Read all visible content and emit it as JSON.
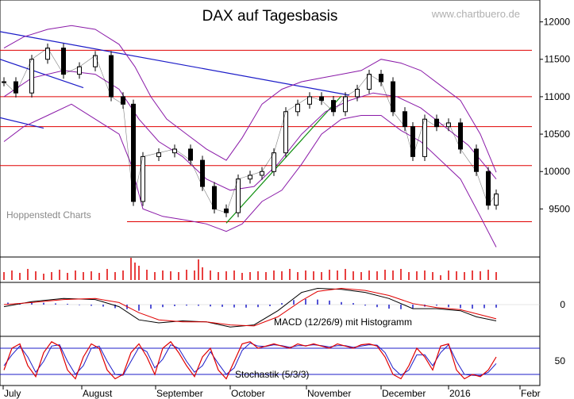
{
  "chart_data": {
    "type": "line",
    "title": "DAX auf Tagesbasis",
    "watermark": "www.chartbuero.de",
    "source_label": "Hoppenstedt Charts",
    "x_labels": [
      "July",
      "August",
      "September",
      "October",
      "November",
      "December",
      "2016",
      "Febr"
    ],
    "price_axis": {
      "ticks": [
        "12000",
        "11500",
        "11000",
        "10500",
        "10000",
        "9500"
      ],
      "ylim": [
        8900,
        12250
      ]
    },
    "horizontal_levels": [
      11620,
      11000,
      10600,
      10080,
      9330
    ],
    "trendlines": [
      {
        "color": "#1c1cc8",
        "from": [
          0,
          11870
        ],
        "to": [
          440,
          11020
        ]
      },
      {
        "color": "#1c1cc8",
        "from": [
          0,
          11500
        ],
        "to": [
          105,
          11120
        ]
      },
      {
        "color": "#1c1cc8",
        "from": [
          0,
          10720
        ],
        "to": [
          55,
          10580
        ]
      },
      {
        "color": "#109010",
        "from": [
          285,
          9310
        ],
        "to": [
          430,
          11010
        ]
      }
    ],
    "price_series": {
      "name": "DAX",
      "x": [
        5,
        20,
        40,
        60,
        80,
        100,
        120,
        140,
        155,
        168,
        180,
        200,
        220,
        240,
        255,
        270,
        285,
        300,
        315,
        330,
        345,
        360,
        375,
        390,
        405,
        420,
        435,
        450,
        465,
        480,
        495,
        510,
        520,
        535,
        550,
        565,
        580,
        600,
        615,
        625
      ],
      "close": [
        11200,
        11050,
        11500,
        11650,
        11300,
        11400,
        11550,
        11000,
        10900,
        9600,
        10200,
        10250,
        10300,
        10150,
        9800,
        9500,
        9450,
        9900,
        9950,
        10000,
        10250,
        10800,
        10900,
        11000,
        10950,
        10800,
        11000,
        11100,
        11300,
        11200,
        10800,
        10600,
        10200,
        10700,
        10600,
        10650,
        10300,
        10000,
        9550,
        9700
      ]
    },
    "bollinger_upper": {
      "x": [
        5,
        30,
        60,
        90,
        120,
        150,
        170,
        190,
        210,
        235,
        260,
        285,
        305,
        330,
        355,
        380,
        405,
        430,
        455,
        480,
        505,
        530,
        555,
        580,
        605,
        625
      ],
      "y": [
        11650,
        11800,
        11900,
        11950,
        11900,
        11700,
        11400,
        11000,
        10700,
        10500,
        10300,
        10150,
        10450,
        10900,
        11100,
        11200,
        11250,
        11300,
        11350,
        11500,
        11450,
        11350,
        11150,
        10950,
        10500,
        9990
      ]
    },
    "bollinger_lower": {
      "x": [
        5,
        30,
        60,
        90,
        120,
        150,
        165,
        180,
        205,
        235,
        260,
        285,
        305,
        330,
        355,
        380,
        405,
        430,
        455,
        480,
        505,
        530,
        555,
        580,
        605,
        625
      ],
      "y": [
        10400,
        10600,
        10750,
        10900,
        10700,
        10500,
        10100,
        9500,
        9400,
        9350,
        9300,
        9200,
        9300,
        9600,
        9750,
        10100,
        10500,
        10700,
        10750,
        10750,
        10550,
        10400,
        10150,
        9900,
        9400,
        8990
      ]
    },
    "bollinger_mid": {
      "x": [
        5,
        40,
        80,
        120,
        150,
        175,
        200,
        230,
        260,
        290,
        320,
        350,
        380,
        410,
        440,
        470,
        500,
        530,
        560,
        590,
        625
      ],
      "y": [
        11000,
        11250,
        11350,
        11300,
        11100,
        10700,
        10400,
        10200,
        9900,
        9750,
        9800,
        10100,
        10500,
        10800,
        10950,
        11050,
        11000,
        10850,
        10600,
        10350,
        9900
      ]
    },
    "volume": {
      "x": [
        5,
        15,
        25,
        35,
        45,
        55,
        65,
        75,
        85,
        95,
        105,
        115,
        125,
        135,
        145,
        155,
        165,
        170,
        175,
        185,
        195,
        205,
        215,
        225,
        235,
        245,
        250,
        255,
        265,
        275,
        285,
        295,
        305,
        315,
        325,
        335,
        345,
        355,
        365,
        375,
        385,
        395,
        405,
        415,
        425,
        435,
        445,
        455,
        465,
        475,
        485,
        495,
        505,
        515,
        525,
        535,
        545,
        555,
        565,
        575,
        585,
        595,
        605,
        615,
        625
      ],
      "v": [
        10,
        12,
        9,
        14,
        11,
        8,
        10,
        13,
        9,
        12,
        10,
        11,
        9,
        14,
        10,
        12,
        28,
        22,
        18,
        13,
        10,
        12,
        11,
        10,
        13,
        12,
        26,
        16,
        12,
        10,
        11,
        12,
        9,
        10,
        11,
        10,
        12,
        11,
        14,
        10,
        12,
        11,
        10,
        13,
        12,
        14,
        11,
        10,
        12,
        11,
        13,
        12,
        14,
        10,
        11,
        12,
        10,
        6,
        12,
        11,
        10,
        12,
        11,
        13,
        10
      ]
    },
    "macd": {
      "label": "MACD (12/26/9) mit Histogramm",
      "zero_tick": "0",
      "macd_line": {
        "x": [
          5,
          40,
          80,
          120,
          150,
          175,
          200,
          230,
          260,
          290,
          320,
          350,
          380,
          400,
          430,
          460,
          490,
          520,
          550,
          580,
          600,
          625
        ],
        "y": [
          -20,
          30,
          60,
          50,
          -20,
          -150,
          -180,
          -160,
          -170,
          -220,
          -200,
          -60,
          120,
          160,
          150,
          120,
          60,
          -40,
          -40,
          -60,
          -120,
          -160
        ]
      },
      "signal_line": {
        "x": [
          5,
          40,
          80,
          120,
          150,
          175,
          200,
          230,
          260,
          290,
          320,
          350,
          380,
          400,
          430,
          460,
          490,
          520,
          550,
          580,
          600,
          625
        ],
        "y": [
          0,
          20,
          50,
          60,
          20,
          -80,
          -150,
          -170,
          -170,
          -200,
          -210,
          -120,
          40,
          130,
          160,
          140,
          90,
          10,
          -30,
          -50,
          -90,
          -140
        ]
      },
      "histogram": {
        "x": [
          10,
          25,
          40,
          55,
          70,
          85,
          100,
          115,
          130,
          145,
          160,
          175,
          190,
          205,
          220,
          235,
          250,
          265,
          280,
          295,
          310,
          325,
          340,
          355,
          370,
          385,
          400,
          415,
          430,
          445,
          460,
          475,
          490,
          505,
          520,
          535,
          550,
          565,
          580,
          595,
          610,
          625
        ],
        "v": [
          20,
          15,
          25,
          18,
          12,
          8,
          -5,
          -12,
          -20,
          -35,
          -45,
          -60,
          -40,
          -25,
          -15,
          -10,
          -12,
          -18,
          -22,
          -28,
          -30,
          -25,
          -15,
          15,
          45,
          55,
          50,
          40,
          25,
          15,
          -10,
          -25,
          -40,
          -45,
          -35,
          -20,
          -10,
          -25,
          -35,
          -40,
          -35,
          -30
        ]
      }
    },
    "stochastic": {
      "label": "Stochastik (5/3/3)",
      "tick": "50",
      "levels": [
        80,
        20
      ],
      "k": {
        "x": [
          5,
          15,
          25,
          35,
          45,
          55,
          65,
          75,
          85,
          95,
          105,
          115,
          125,
          135,
          145,
          155,
          165,
          175,
          185,
          195,
          205,
          215,
          225,
          235,
          245,
          255,
          265,
          275,
          285,
          295,
          305,
          315,
          325,
          335,
          345,
          355,
          365,
          375,
          385,
          395,
          405,
          415,
          425,
          435,
          445,
          455,
          465,
          475,
          485,
          495,
          505,
          515,
          525,
          535,
          545,
          555,
          565,
          575,
          585,
          595,
          605,
          615,
          625
        ],
        "y": [
          30,
          80,
          90,
          40,
          15,
          70,
          95,
          85,
          30,
          10,
          60,
          90,
          80,
          30,
          10,
          20,
          70,
          90,
          60,
          20,
          80,
          95,
          70,
          40,
          15,
          60,
          80,
          30,
          10,
          50,
          90,
          95,
          80,
          85,
          90,
          85,
          80,
          90,
          85,
          90,
          85,
          80,
          90,
          85,
          80,
          88,
          90,
          85,
          60,
          20,
          10,
          40,
          80,
          60,
          30,
          85,
          90,
          30,
          10,
          20,
          15,
          30,
          60
        ]
      },
      "d": {
        "x": [
          5,
          15,
          25,
          35,
          45,
          55,
          65,
          75,
          85,
          95,
          105,
          115,
          125,
          135,
          145,
          155,
          165,
          175,
          185,
          195,
          205,
          215,
          225,
          235,
          245,
          255,
          265,
          275,
          285,
          295,
          305,
          315,
          325,
          335,
          345,
          355,
          365,
          375,
          385,
          395,
          405,
          415,
          425,
          435,
          445,
          455,
          465,
          475,
          485,
          495,
          505,
          515,
          525,
          535,
          545,
          555,
          565,
          575,
          585,
          595,
          605,
          615,
          625
        ],
        "y": [
          40,
          65,
          85,
          60,
          25,
          50,
          85,
          88,
          50,
          20,
          40,
          80,
          85,
          50,
          20,
          18,
          50,
          82,
          72,
          35,
          55,
          88,
          80,
          50,
          25,
          40,
          72,
          45,
          20,
          35,
          75,
          92,
          85,
          84,
          88,
          86,
          82,
          86,
          86,
          88,
          86,
          83,
          86,
          86,
          82,
          85,
          88,
          87,
          70,
          35,
          18,
          30,
          65,
          65,
          40,
          70,
          88,
          50,
          20,
          18,
          17,
          25,
          45
        ]
      }
    },
    "colors": {
      "price": "#000000",
      "bollinger": "#8a1aa8",
      "level": "#e00000",
      "volume": "#e00000",
      "macd": "#000000",
      "signal": "#e00000",
      "histogram": "#1c1cc8",
      "stoch_k": "#e00000",
      "stoch_d": "#1c1cc8",
      "stoch_level": "#1c1cc8"
    }
  }
}
